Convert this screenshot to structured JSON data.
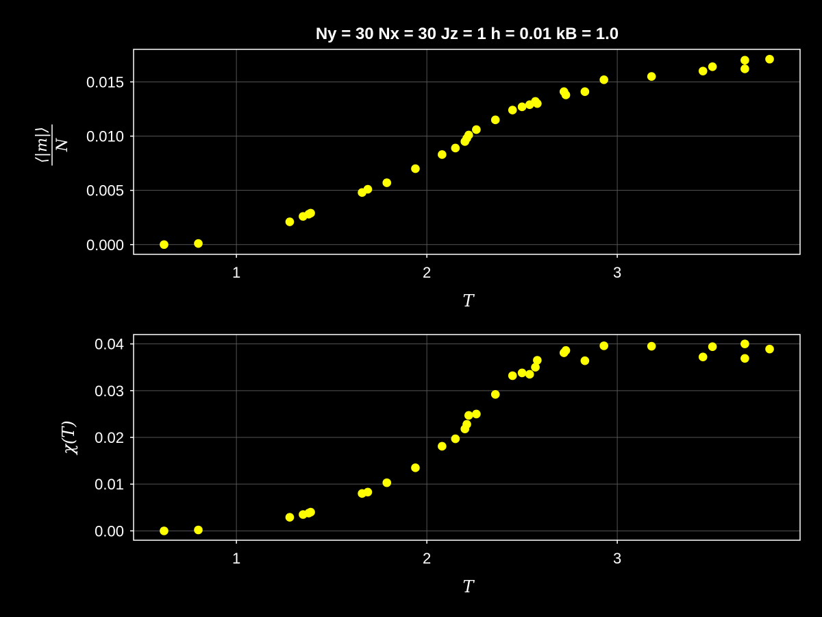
{
  "title": "Ny = 30 Nx = 30 Jz = 1 h = 0.01 kB = 1.0",
  "chart_data": [
    {
      "type": "scatter",
      "xlabel": "T",
      "ylabel": "⟨|m|⟩ / N",
      "ylabel_num": "⟨|m|⟩",
      "ylabel_den": "N",
      "xlim": [
        0.46,
        3.96
      ],
      "ylim": [
        -0.0009,
        0.018
      ],
      "xticks": [
        1,
        2,
        3
      ],
      "xtick_labels": [
        "1",
        "2",
        "3"
      ],
      "yticks": [
        0.0,
        0.005,
        0.01,
        0.015
      ],
      "ytick_labels": [
        "0.000",
        "0.005",
        "0.010",
        "0.015"
      ],
      "grid": true,
      "marker_color": "#ffff00",
      "points": [
        {
          "x": 0.62,
          "y": 0.0
        },
        {
          "x": 0.8,
          "y": 0.0001
        },
        {
          "x": 1.28,
          "y": 0.0021
        },
        {
          "x": 1.35,
          "y": 0.0026
        },
        {
          "x": 1.38,
          "y": 0.0028
        },
        {
          "x": 1.39,
          "y": 0.0029
        },
        {
          "x": 1.66,
          "y": 0.0048
        },
        {
          "x": 1.69,
          "y": 0.0051
        },
        {
          "x": 1.79,
          "y": 0.0057
        },
        {
          "x": 1.94,
          "y": 0.007
        },
        {
          "x": 2.08,
          "y": 0.0083
        },
        {
          "x": 2.15,
          "y": 0.0089
        },
        {
          "x": 2.2,
          "y": 0.0095
        },
        {
          "x": 2.21,
          "y": 0.0098
        },
        {
          "x": 2.22,
          "y": 0.0101
        },
        {
          "x": 2.26,
          "y": 0.0106
        },
        {
          "x": 2.36,
          "y": 0.0115
        },
        {
          "x": 2.45,
          "y": 0.0124
        },
        {
          "x": 2.5,
          "y": 0.0127
        },
        {
          "x": 2.54,
          "y": 0.0129
        },
        {
          "x": 2.57,
          "y": 0.0132
        },
        {
          "x": 2.58,
          "y": 0.013
        },
        {
          "x": 2.72,
          "y": 0.0141
        },
        {
          "x": 2.73,
          "y": 0.0138
        },
        {
          "x": 2.83,
          "y": 0.0141
        },
        {
          "x": 2.93,
          "y": 0.0152
        },
        {
          "x": 3.18,
          "y": 0.0155
        },
        {
          "x": 3.45,
          "y": 0.016
        },
        {
          "x": 3.5,
          "y": 0.0164
        },
        {
          "x": 3.67,
          "y": 0.017
        },
        {
          "x": 3.67,
          "y": 0.0162
        },
        {
          "x": 3.8,
          "y": 0.0171
        }
      ]
    },
    {
      "type": "scatter",
      "xlabel": "T",
      "ylabel": "χ(T)",
      "xlim": [
        0.46,
        3.96
      ],
      "ylim": [
        -0.002,
        0.042
      ],
      "xticks": [
        1,
        2,
        3
      ],
      "xtick_labels": [
        "1",
        "2",
        "3"
      ],
      "yticks": [
        0.0,
        0.01,
        0.02,
        0.03,
        0.04
      ],
      "ytick_labels": [
        "0.00",
        "0.01",
        "0.02",
        "0.03",
        "0.04"
      ],
      "grid": true,
      "marker_color": "#ffff00",
      "points": [
        {
          "x": 0.62,
          "y": 0.0
        },
        {
          "x": 0.8,
          "y": 0.0002
        },
        {
          "x": 1.28,
          "y": 0.0029
        },
        {
          "x": 1.35,
          "y": 0.0035
        },
        {
          "x": 1.38,
          "y": 0.0038
        },
        {
          "x": 1.39,
          "y": 0.004
        },
        {
          "x": 1.66,
          "y": 0.008
        },
        {
          "x": 1.69,
          "y": 0.0083
        },
        {
          "x": 1.79,
          "y": 0.0103
        },
        {
          "x": 1.94,
          "y": 0.0135
        },
        {
          "x": 2.08,
          "y": 0.0181
        },
        {
          "x": 2.15,
          "y": 0.0197
        },
        {
          "x": 2.2,
          "y": 0.0218
        },
        {
          "x": 2.21,
          "y": 0.0228
        },
        {
          "x": 2.22,
          "y": 0.0247
        },
        {
          "x": 2.26,
          "y": 0.025
        },
        {
          "x": 2.36,
          "y": 0.0292
        },
        {
          "x": 2.45,
          "y": 0.0332
        },
        {
          "x": 2.5,
          "y": 0.0338
        },
        {
          "x": 2.54,
          "y": 0.0335
        },
        {
          "x": 2.57,
          "y": 0.035
        },
        {
          "x": 2.58,
          "y": 0.0365
        },
        {
          "x": 2.72,
          "y": 0.0381
        },
        {
          "x": 2.73,
          "y": 0.0386
        },
        {
          "x": 2.83,
          "y": 0.0364
        },
        {
          "x": 2.93,
          "y": 0.0396
        },
        {
          "x": 3.18,
          "y": 0.0395
        },
        {
          "x": 3.45,
          "y": 0.0372
        },
        {
          "x": 3.5,
          "y": 0.0394
        },
        {
          "x": 3.67,
          "y": 0.04
        },
        {
          "x": 3.67,
          "y": 0.0369
        },
        {
          "x": 3.8,
          "y": 0.0389
        }
      ]
    }
  ]
}
